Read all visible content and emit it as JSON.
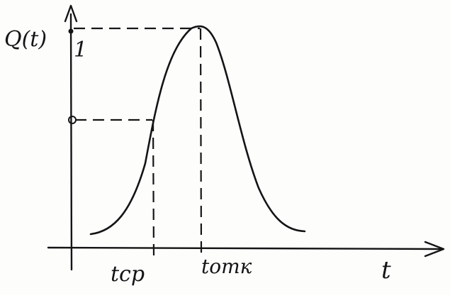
{
  "diagram": {
    "y_axis_label": "Q(t)",
    "y_tick_label": "1",
    "x_axis_label": "t",
    "x_marks": [
      {
        "label": "tср"
      },
      {
        "label": "tотк"
      }
    ],
    "colors": {
      "ink": "#141414",
      "paper": "#fdfdfc"
    }
  }
}
